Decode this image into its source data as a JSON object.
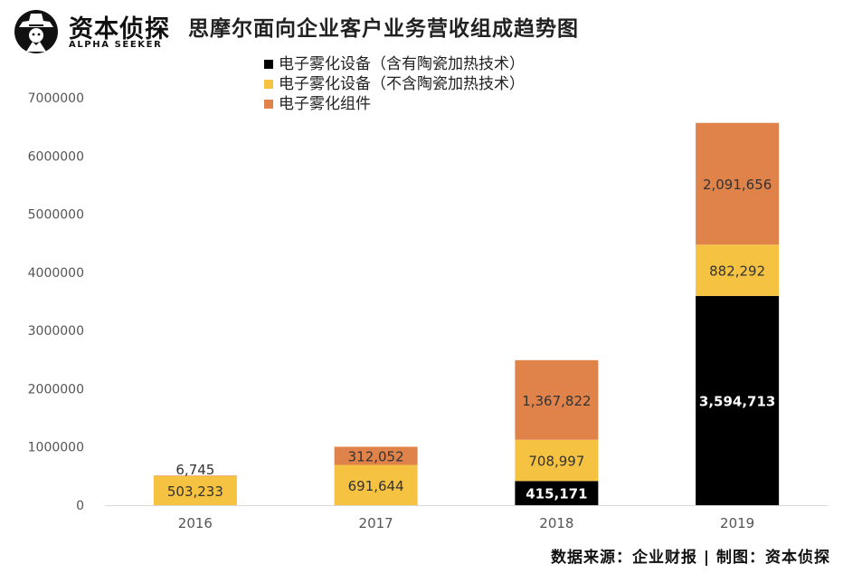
{
  "brand": {
    "name": "资本侦探",
    "subtitle": "ALPHA SEEKER",
    "icon": "detective-logo-icon"
  },
  "title": "思摩尔面向企业客户业务营收组成趋势图",
  "source": "数据来源：企业财报 | 制图：资本侦探",
  "colors": {
    "black": "#000000",
    "yellow": "#F5C242",
    "orange": "#E0834A",
    "axis": "#D9D9D9",
    "text": "#555555"
  },
  "chart_data": {
    "type": "bar",
    "stacked": true,
    "categories": [
      "2016",
      "2017",
      "2018",
      "2019"
    ],
    "series": [
      {
        "name": "电子雾化设备（含有陶瓷加热技术）",
        "color": "#000000",
        "label_color": "#FFFFFF",
        "values": [
          0,
          0,
          415171,
          3594713
        ],
        "labels": [
          "",
          "",
          "415,171",
          "3,594,713"
        ]
      },
      {
        "name": "电子雾化设备（不含陶瓷加热技术）",
        "color": "#F5C242",
        "label_color": "#333333",
        "values": [
          503233,
          691644,
          708997,
          882292
        ],
        "labels": [
          "503,233",
          "691,644",
          "708,997",
          "882,292"
        ]
      },
      {
        "name": "电子雾化组件",
        "color": "#E0834A",
        "label_color": "#333333",
        "values": [
          6745,
          312052,
          1367822,
          2091656
        ],
        "labels": [
          "6,745",
          "312,052",
          "1,367,822",
          "2,091,656"
        ]
      }
    ],
    "ylim": [
      0,
      7000000
    ],
    "yticks": [
      "0",
      "1000000",
      "2000000",
      "3000000",
      "4000000",
      "5000000",
      "6000000",
      "7000000"
    ],
    "grid": false,
    "legend_position": "top",
    "xlabel": "",
    "ylabel": ""
  }
}
